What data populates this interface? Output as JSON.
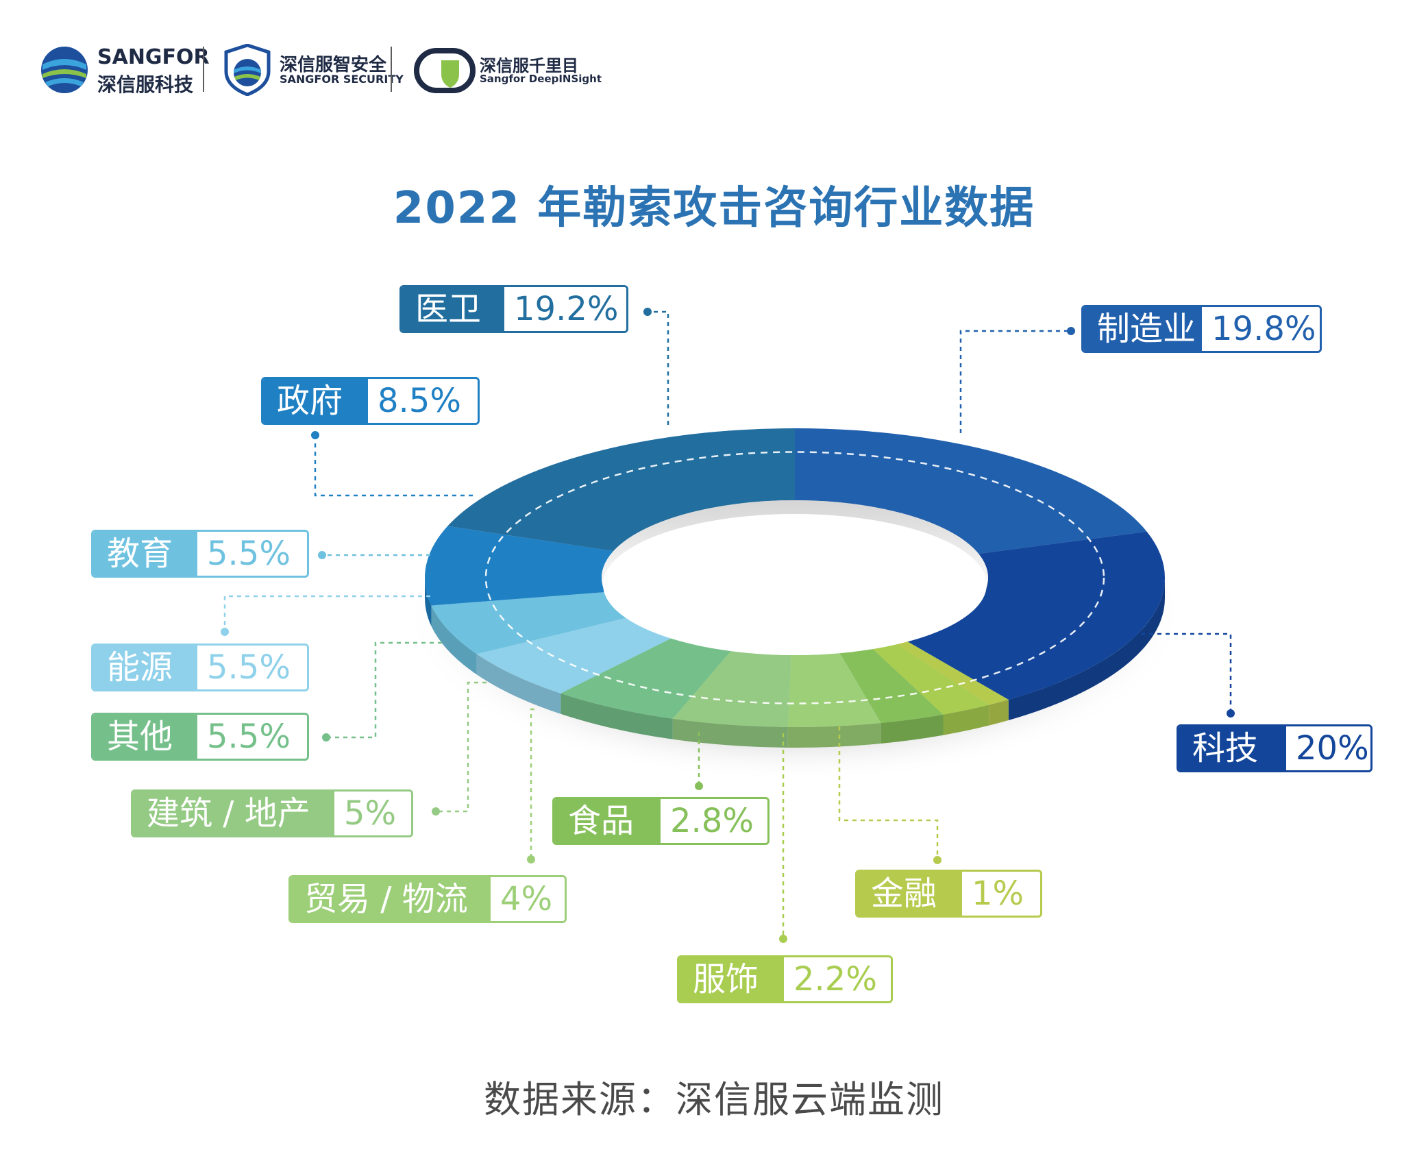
{
  "header": {
    "brand1": {
      "line1": "SANGFOR",
      "line2": "深信服科技"
    },
    "brand2": {
      "line1": "深信服智安全",
      "line2": "SANGFOR SECURITY"
    },
    "brand3": {
      "line1": "深信服千里目",
      "line2": "Sangfor DeepINSight"
    }
  },
  "colors": {
    "manufacturing": "#2160ad",
    "tech": "#13469a",
    "finance": "#b6ca4e",
    "apparel": "#a8cd50",
    "food": "#86c05a",
    "trade": "#9dcf79",
    "construction": "#94ca83",
    "other": "#75c08a",
    "energy": "#8fd1ea",
    "education": "#6ec2e0",
    "government": "#1f80c4",
    "medical": "#216e9f"
  },
  "chart_data": {
    "type": "pie",
    "style": "3d-donut",
    "title": "2022 年勒索攻击咨询行业数据",
    "unit": "%",
    "slices": [
      {
        "key": "manufacturing",
        "name": "制造业",
        "value": 19.8,
        "label": "19.8%"
      },
      {
        "key": "tech",
        "name": "科技",
        "value": 20,
        "label": "20%"
      },
      {
        "key": "finance",
        "name": "金融",
        "value": 1,
        "label": "1%"
      },
      {
        "key": "apparel",
        "name": "服饰",
        "value": 2.2,
        "label": "2.2%"
      },
      {
        "key": "food",
        "name": "食品",
        "value": 2.8,
        "label": "2.8%"
      },
      {
        "key": "trade",
        "name": "贸易 / 物流",
        "value": 4,
        "label": "4%"
      },
      {
        "key": "construction",
        "name": "建筑 / 地产",
        "value": 5,
        "label": "5%"
      },
      {
        "key": "other",
        "name": "其他",
        "value": 5.5,
        "label": "5.5%"
      },
      {
        "key": "energy",
        "name": "能源",
        "value": 5.5,
        "label": "5.5%"
      },
      {
        "key": "education",
        "name": "教育",
        "value": 5.5,
        "label": "5.5%"
      },
      {
        "key": "government",
        "name": "政府",
        "value": 8.5,
        "label": "8.5%"
      },
      {
        "key": "medical",
        "name": "医卫",
        "value": 19.2,
        "label": "19.2%"
      }
    ]
  },
  "source": "数据来源：深信服云端监测"
}
